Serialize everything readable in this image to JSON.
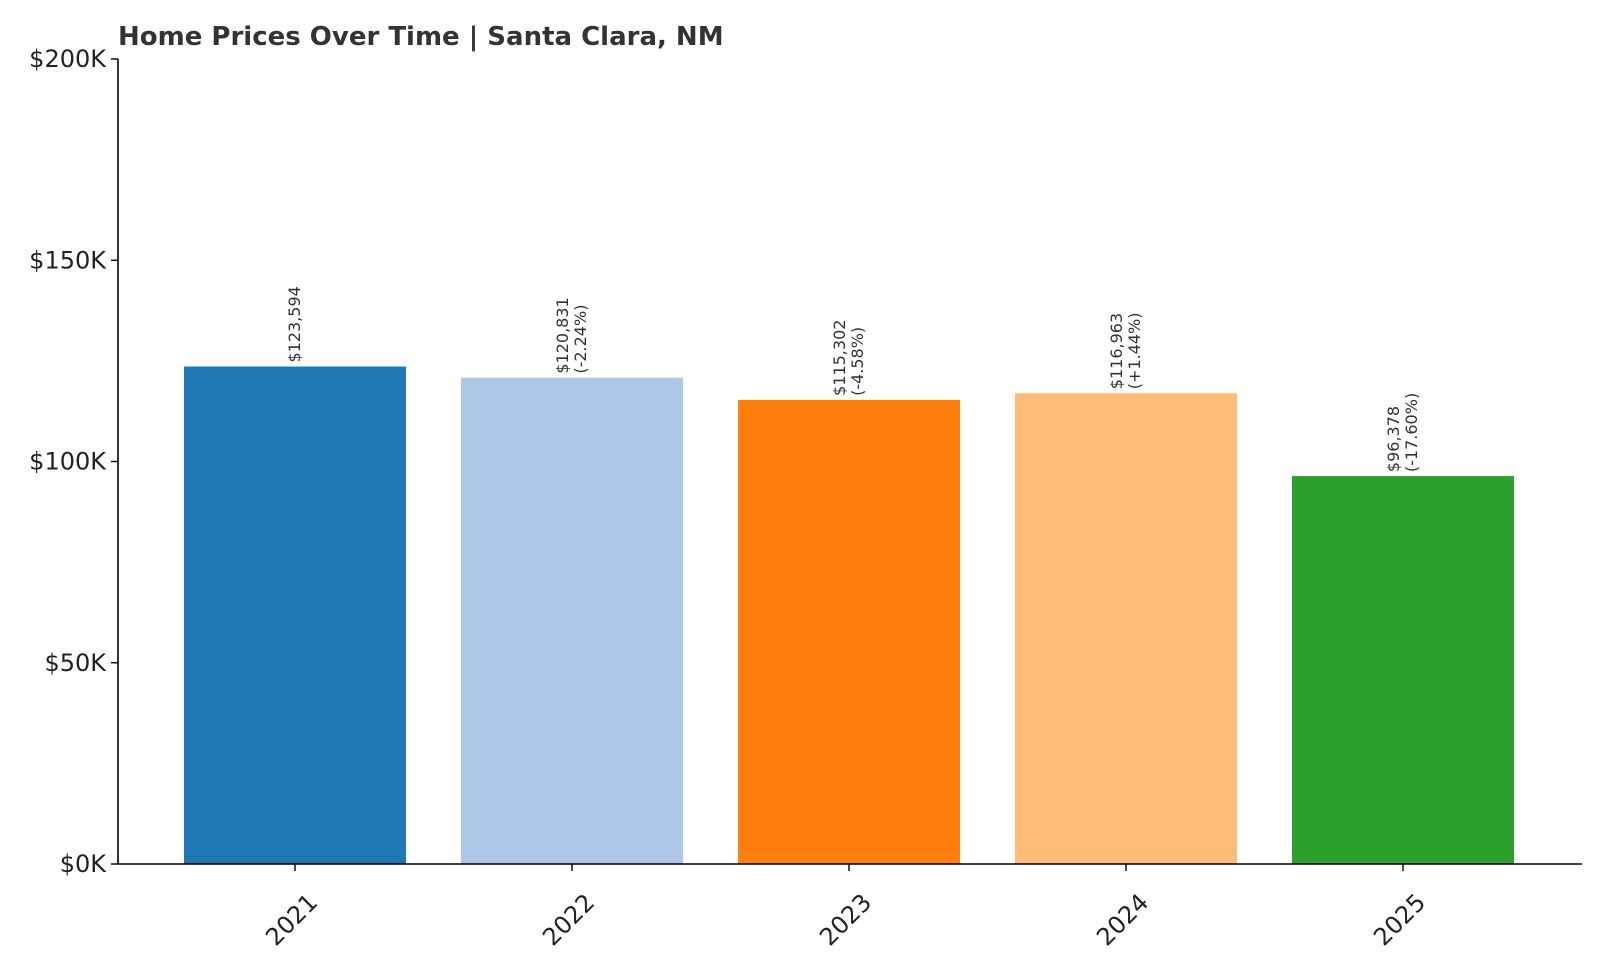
{
  "chart_data": {
    "type": "bar",
    "title": "Home Prices Over Time | Santa Clara, NM",
    "xlabel": "",
    "ylabel": "",
    "categories": [
      "2021",
      "2022",
      "2023",
      "2024",
      "2025"
    ],
    "values": [
      123594,
      120831,
      115302,
      116963,
      96378
    ],
    "value_labels": [
      "$123,594",
      "$120,831",
      "$115,302",
      "$116,963",
      "$96,378"
    ],
    "change_labels": [
      "",
      "(-2.24%)",
      "(-4.58%)",
      "(+1.44%)",
      "(-17.60%)"
    ],
    "colors": [
      "#1f77b4",
      "#aec7e8",
      "#ff7f0e",
      "#ffbb78",
      "#2ca02c"
    ],
    "ylim": [
      0,
      200000
    ],
    "yticks": [
      0,
      50000,
      100000,
      150000,
      200000
    ],
    "ytick_labels": [
      "$0K",
      "$50K",
      "$100K",
      "$150K",
      "$200K"
    ],
    "grid": false,
    "legend": "none"
  }
}
